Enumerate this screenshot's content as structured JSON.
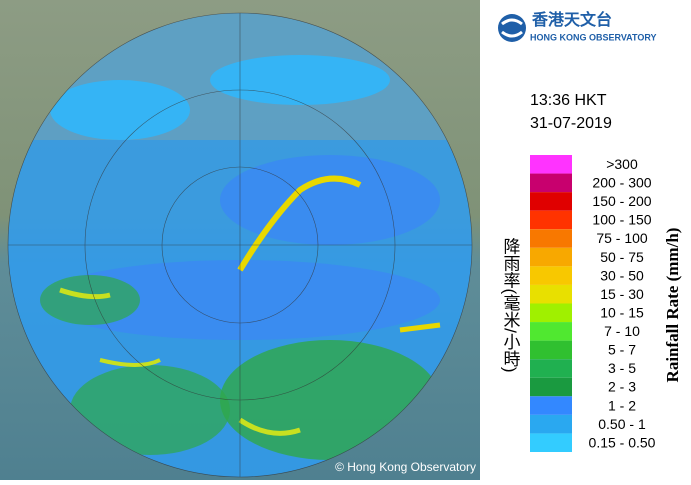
{
  "logo": {
    "chinese": "香港天文台",
    "english": "HONG KONG OBSERVATORY"
  },
  "time": "13:36 HKT",
  "date": "31-07-2019",
  "credit": "© Hong Kong Observatory",
  "legend": {
    "title_english": "Rainfall Rate (mm/h)",
    "title_chinese": "降雨率(毫米/小時)",
    "items": [
      {
        "label": ">300",
        "color": "#ff33ff"
      },
      {
        "label": "200 - 300",
        "color": "#c8006e"
      },
      {
        "label": "150 - 200",
        "color": "#e00000"
      },
      {
        "label": "100 - 150",
        "color": "#ff3300"
      },
      {
        "label": "75 - 100",
        "color": "#f87800"
      },
      {
        "label": "50 - 75",
        "color": "#f8a800"
      },
      {
        "label": "30 - 50",
        "color": "#f8c800"
      },
      {
        "label": "15 - 30",
        "color": "#e8e000"
      },
      {
        "label": "10 - 15",
        "color": "#a0f000"
      },
      {
        "label": "7 - 10",
        "color": "#50e830"
      },
      {
        "label": "5 - 7",
        "color": "#30c030"
      },
      {
        "label": "3 - 5",
        "color": "#20b050"
      },
      {
        "label": "2 - 3",
        "color": "#1a9a40"
      },
      {
        "label": "1 - 2",
        "color": "#3388ff"
      },
      {
        "label": "0.50 - 1",
        "color": "#2aa8f0"
      },
      {
        "label": "0.15 - 0.50",
        "color": "#33ccff"
      }
    ]
  }
}
